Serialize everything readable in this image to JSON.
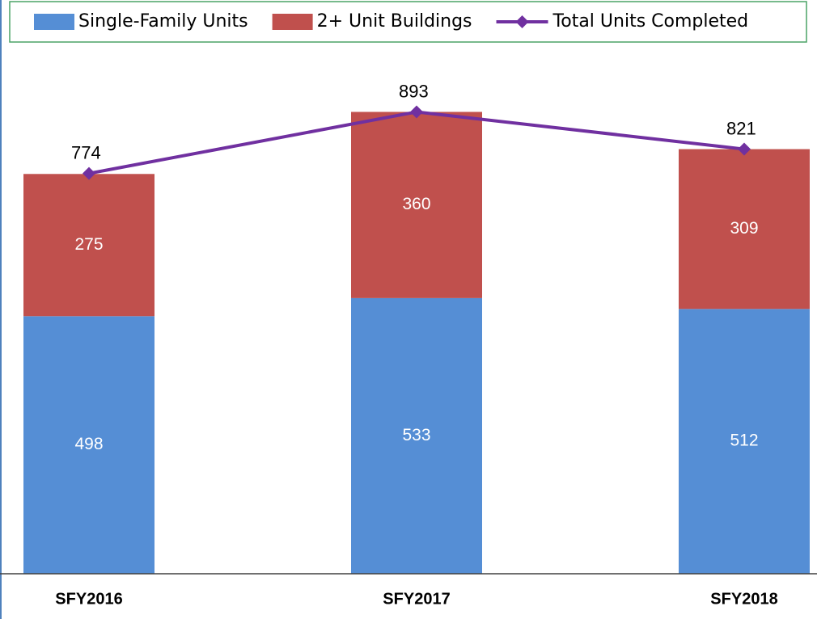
{
  "chart_data": {
    "type": "bar",
    "stacked": true,
    "legend": "top",
    "categories": [
      "SFY2016",
      "SFY2017",
      "SFY2018"
    ],
    "series": [
      {
        "name": "Single-Family Units",
        "color": "#558ed5",
        "values": [
          498,
          533,
          512
        ]
      },
      {
        "name": "2+ Unit Buildings",
        "color": "#c0504d",
        "values": [
          275,
          360,
          309
        ]
      },
      {
        "name": "Total Units Completed",
        "type": "line",
        "color": "#7030a0",
        "values": [
          774,
          893,
          821
        ]
      }
    ],
    "ylim": [
      0,
      1000
    ]
  }
}
